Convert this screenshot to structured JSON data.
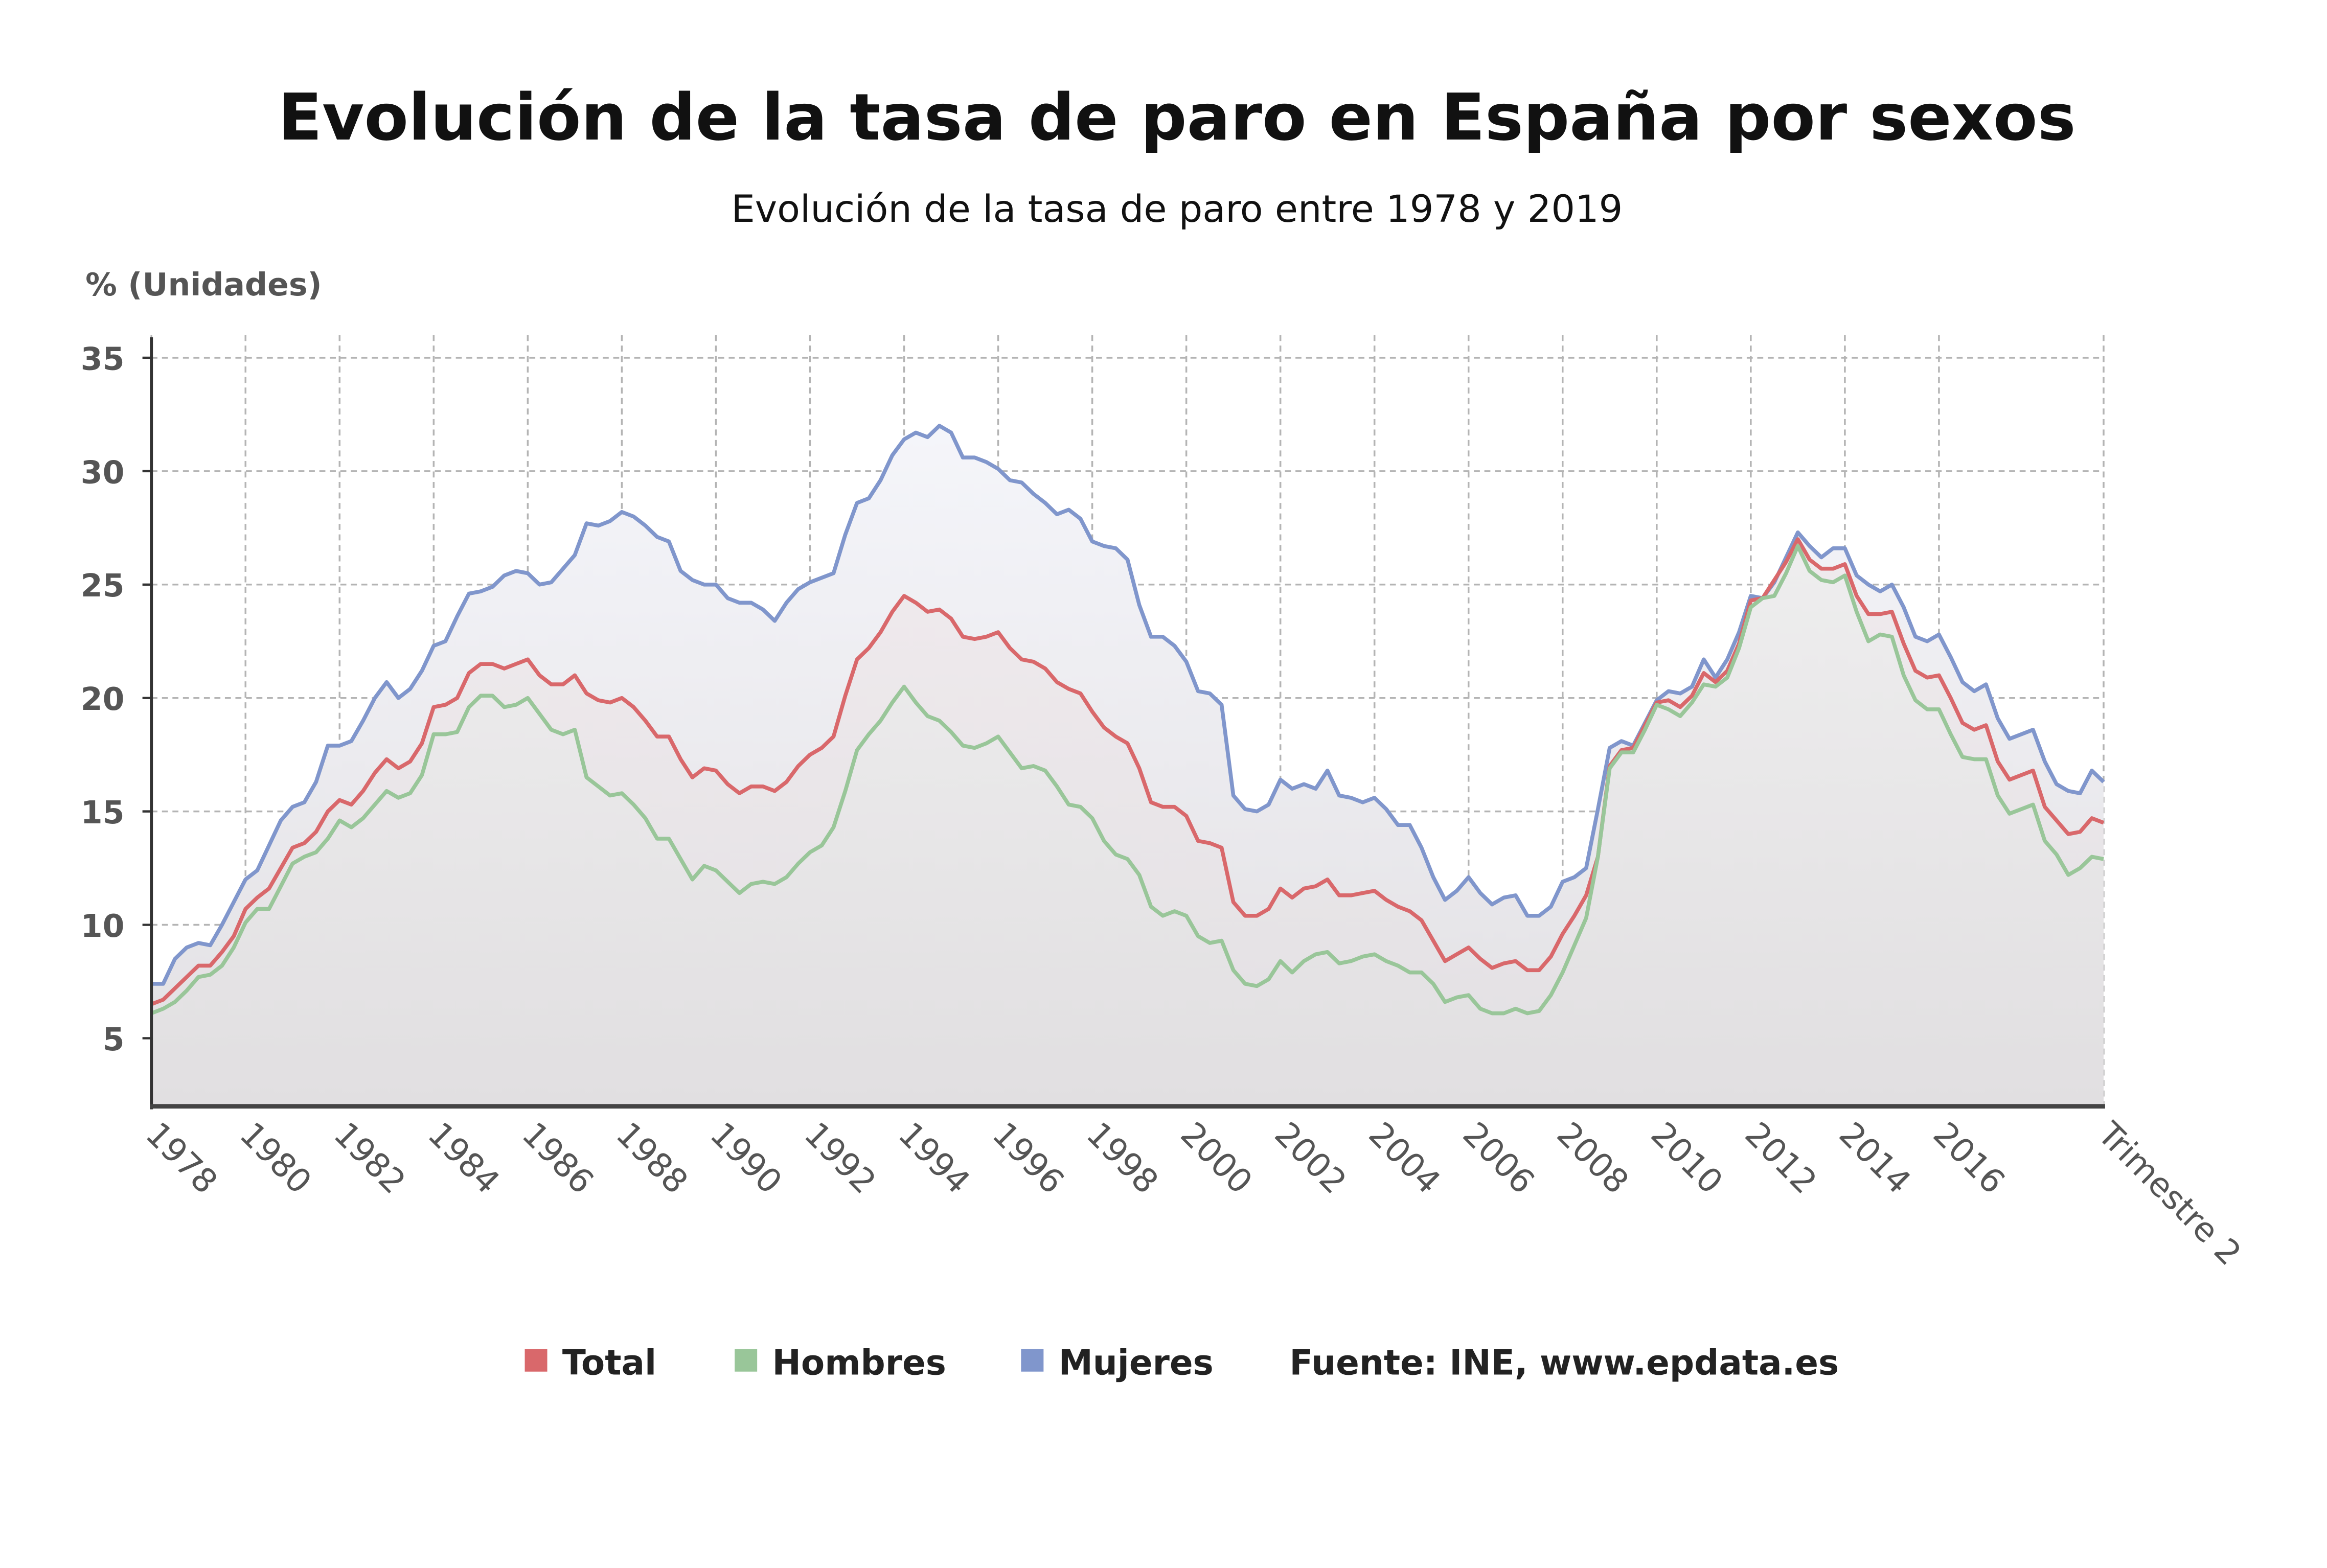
{
  "chart_data": {
    "type": "line",
    "title": "Evolución de la tasa de paro en España por sexos",
    "subtitle": "Evolución de la tasa de paro entre 1978 y 2019",
    "ylabel": "% (Unidades)",
    "xlabel": "",
    "frequency": "quarterly",
    "ylim": [
      2,
      36
    ],
    "y_ticks": [
      "35",
      "30",
      "25",
      "20",
      "15",
      "10",
      "5"
    ],
    "x_tick_labels": [
      "1978",
      "1980",
      "1982",
      "1984",
      "1986",
      "1988",
      "1990",
      "1992",
      "1994",
      "1996",
      "1998",
      "2000",
      "2002",
      "2004",
      "2006",
      "2008",
      "2010",
      "2012",
      "2014",
      "2016",
      "Trimestre 2"
    ],
    "grid": true,
    "legend_position": "bottom",
    "source": "Fuente: INE, www.epdata.es",
    "series": [
      {
        "name": "Mujeres",
        "color": "#8096cc",
        "values": [
          7.4,
          7.4,
          8.5,
          9.0,
          9.2,
          9.1,
          10.0,
          11.0,
          12.0,
          12.4,
          13.5,
          14.6,
          15.2,
          15.4,
          16.3,
          17.9,
          17.9,
          18.1,
          19.0,
          20.0,
          20.7,
          20.0,
          20.4,
          21.2,
          22.3,
          22.5,
          23.6,
          24.6,
          24.7,
          24.9,
          25.4,
          25.6,
          25.5,
          25.0,
          25.1,
          25.7,
          26.3,
          27.7,
          27.6,
          27.8,
          28.2,
          28.0,
          27.6,
          27.1,
          26.9,
          25.6,
          25.2,
          25.0,
          25.0,
          24.4,
          24.2,
          24.2,
          23.9,
          23.4,
          24.2,
          24.8,
          25.1,
          25.3,
          25.5,
          27.2,
          28.6,
          28.8,
          29.6,
          30.7,
          31.4,
          31.7,
          31.5,
          32.0,
          31.7,
          30.6,
          30.6,
          30.4,
          30.1,
          29.6,
          29.5,
          29.0,
          28.6,
          28.1,
          28.3,
          27.9,
          26.9,
          26.7,
          26.6,
          26.1,
          24.1,
          22.7,
          22.7,
          22.3,
          21.6,
          20.3,
          20.2,
          19.7,
          15.7,
          15.1,
          15.0,
          15.3,
          16.4,
          16.0,
          16.2,
          16.0,
          16.8,
          15.7,
          15.6,
          15.4,
          15.6,
          15.1,
          14.4,
          14.4,
          13.4,
          12.1,
          11.1,
          11.5,
          12.1,
          11.4,
          10.9,
          11.2,
          11.3,
          10.4,
          10.4,
          10.8,
          11.9,
          12.1,
          12.5,
          15.1,
          17.8,
          18.1,
          17.9,
          18.9,
          19.9,
          20.3,
          20.2,
          20.5,
          21.7,
          20.9,
          21.7,
          22.9,
          24.5,
          24.4,
          25.1,
          26.2,
          27.3,
          26.7,
          26.2,
          26.6,
          26.6,
          25.4,
          25.0,
          24.7,
          25.0,
          24.0,
          22.7,
          22.5,
          22.8,
          21.8,
          20.7,
          20.3,
          20.6,
          19.1,
          18.2,
          18.4,
          18.6,
          17.2,
          16.2,
          15.9,
          15.8,
          16.8,
          16.3
        ]
      },
      {
        "name": "Total",
        "color": "#d9686b",
        "values": [
          6.5,
          6.7,
          7.2,
          7.7,
          8.2,
          8.2,
          8.8,
          9.5,
          10.7,
          11.2,
          11.6,
          12.5,
          13.4,
          13.6,
          14.1,
          15.0,
          15.5,
          15.3,
          15.9,
          16.7,
          17.3,
          16.9,
          17.2,
          18.0,
          19.6,
          19.7,
          20.0,
          21.1,
          21.5,
          21.5,
          21.3,
          21.5,
          21.7,
          21.0,
          20.6,
          20.6,
          21.0,
          20.2,
          19.9,
          19.8,
          20.0,
          19.6,
          19.0,
          18.3,
          18.3,
          17.3,
          16.5,
          16.9,
          16.8,
          16.2,
          15.8,
          16.1,
          16.1,
          15.9,
          16.3,
          17.0,
          17.5,
          17.8,
          18.3,
          20.1,
          21.7,
          22.2,
          22.9,
          23.8,
          24.5,
          24.2,
          23.8,
          23.9,
          23.5,
          22.7,
          22.6,
          22.7,
          22.9,
          22.2,
          21.7,
          21.6,
          21.3,
          20.7,
          20.4,
          20.2,
          19.4,
          18.7,
          18.3,
          18.0,
          16.9,
          15.4,
          15.2,
          15.2,
          14.8,
          13.7,
          13.6,
          13.4,
          11.0,
          10.4,
          10.4,
          10.7,
          11.6,
          11.2,
          11.6,
          11.7,
          12.0,
          11.3,
          11.3,
          11.4,
          11.5,
          11.1,
          10.8,
          10.6,
          10.2,
          9.3,
          8.4,
          8.7,
          9.0,
          8.5,
          8.1,
          8.3,
          8.4,
          8.0,
          8.0,
          8.6,
          9.6,
          10.4,
          11.3,
          13.0,
          17.0,
          17.7,
          17.8,
          18.8,
          19.8,
          19.9,
          19.6,
          20.1,
          21.1,
          20.7,
          21.2,
          22.4,
          24.3,
          24.4,
          25.2,
          26.0,
          27.0,
          26.1,
          25.7,
          25.7,
          25.9,
          24.5,
          23.7,
          23.7,
          23.8,
          22.4,
          21.2,
          20.9,
          21.0,
          20.0,
          18.9,
          18.6,
          18.8,
          17.2,
          16.4,
          16.6,
          16.8,
          15.2,
          14.6,
          14.0,
          14.1,
          14.7,
          14.5
        ]
      },
      {
        "name": "Hombres",
        "color": "#99c699",
        "values": [
          6.1,
          6.3,
          6.6,
          7.1,
          7.7,
          7.8,
          8.2,
          9.0,
          10.1,
          10.7,
          10.7,
          11.7,
          12.7,
          13.0,
          13.2,
          13.8,
          14.6,
          14.3,
          14.7,
          15.3,
          15.9,
          15.6,
          15.8,
          16.6,
          18.4,
          18.4,
          18.5,
          19.6,
          20.1,
          20.1,
          19.6,
          19.7,
          20.0,
          19.3,
          18.6,
          18.4,
          18.6,
          16.5,
          16.1,
          15.7,
          15.8,
          15.3,
          14.7,
          13.8,
          13.8,
          12.9,
          12.0,
          12.6,
          12.4,
          11.9,
          11.4,
          11.8,
          11.9,
          11.8,
          12.1,
          12.7,
          13.2,
          13.5,
          14.3,
          15.9,
          17.7,
          18.4,
          19.0,
          19.8,
          20.5,
          19.8,
          19.2,
          19.0,
          18.5,
          17.9,
          17.8,
          18.0,
          18.3,
          17.6,
          16.9,
          17.0,
          16.8,
          16.1,
          15.3,
          15.2,
          14.7,
          13.7,
          13.1,
          12.9,
          12.2,
          10.8,
          10.4,
          10.6,
          10.4,
          9.5,
          9.2,
          9.3,
          8.0,
          7.4,
          7.3,
          7.6,
          8.4,
          7.9,
          8.4,
          8.7,
          8.8,
          8.3,
          8.4,
          8.6,
          8.7,
          8.4,
          8.2,
          7.9,
          7.9,
          7.4,
          6.6,
          6.8,
          6.9,
          6.3,
          6.1,
          6.1,
          6.3,
          6.1,
          6.2,
          6.9,
          7.9,
          9.1,
          10.3,
          13.0,
          16.9,
          17.6,
          17.6,
          18.6,
          19.7,
          19.5,
          19.2,
          19.8,
          20.6,
          20.5,
          20.9,
          22.2,
          24.0,
          24.4,
          24.5,
          25.5,
          26.7,
          25.6,
          25.2,
          25.1,
          25.4,
          23.8,
          22.5,
          22.8,
          22.7,
          21.0,
          19.9,
          19.5,
          19.5,
          18.4,
          17.4,
          17.3,
          17.3,
          15.7,
          14.9,
          15.1,
          15.3,
          13.7,
          13.1,
          12.2,
          12.5,
          13.0,
          12.9
        ]
      }
    ]
  },
  "legend": {
    "items": [
      {
        "label": "Total",
        "color": "#d9686b"
      },
      {
        "label": "Hombres",
        "color": "#99c699"
      },
      {
        "label": "Mujeres",
        "color": "#8096cc"
      }
    ],
    "source": "Fuente: INE, www.epdata.es"
  }
}
